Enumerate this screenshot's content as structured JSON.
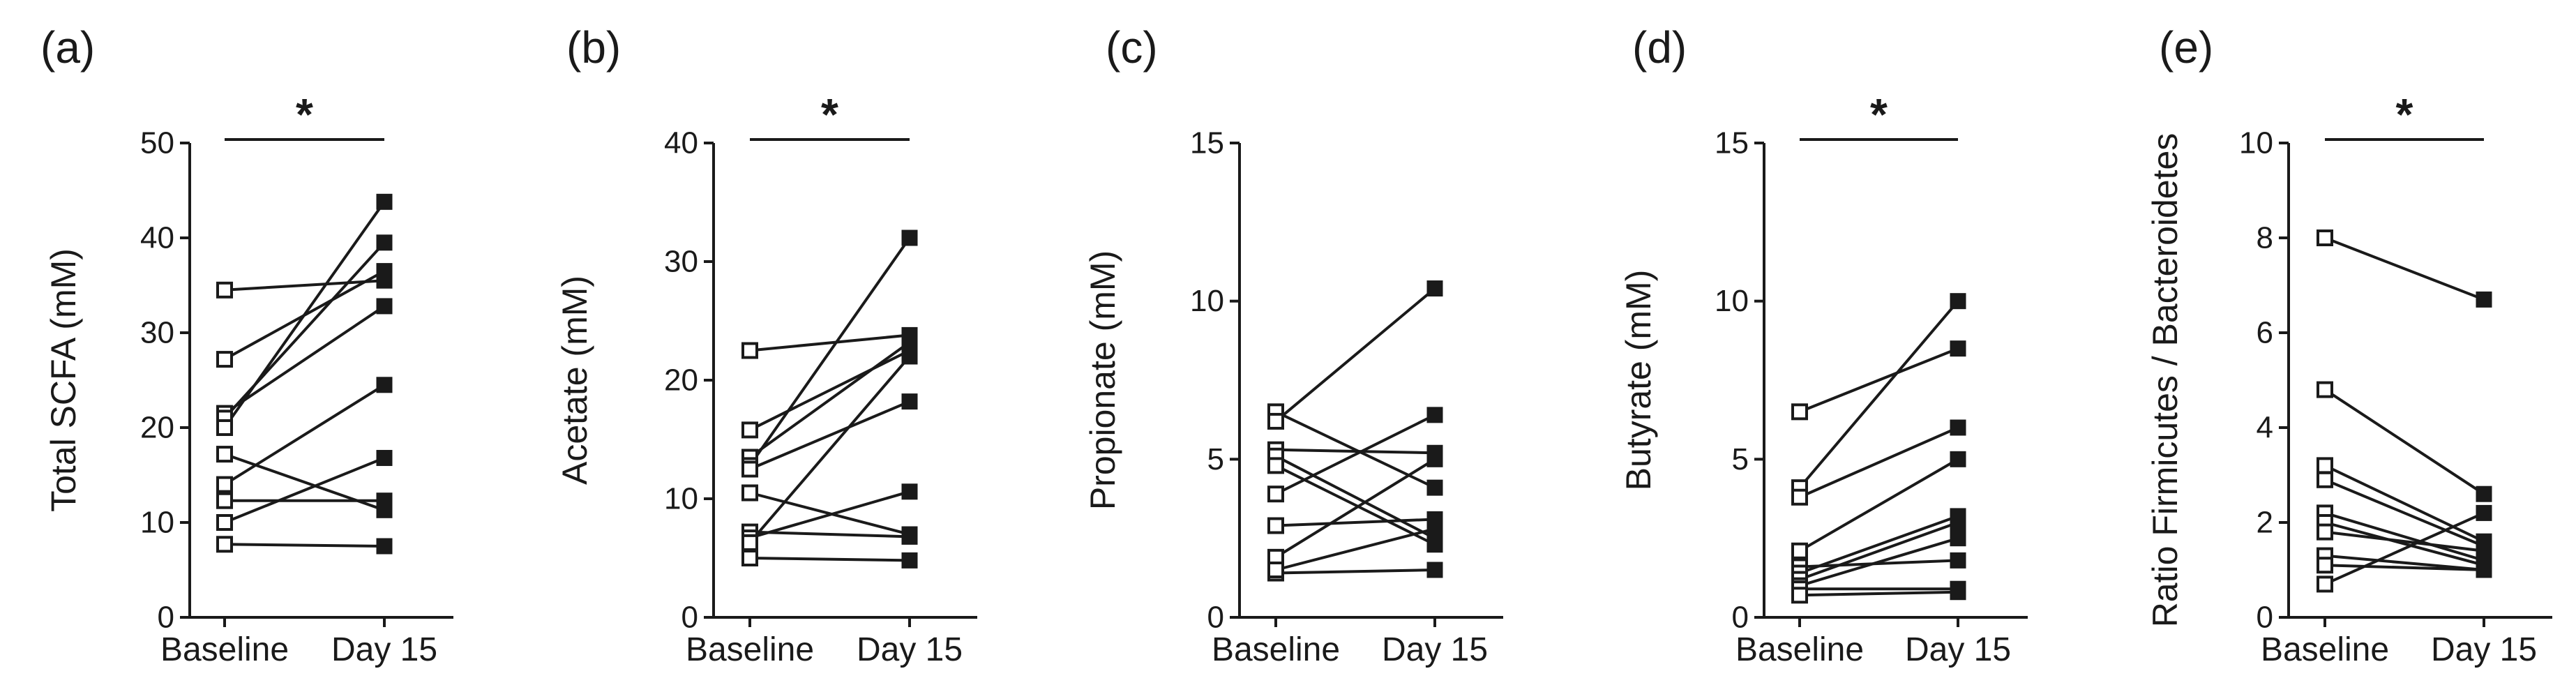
{
  "colors": {
    "ink": "#1a1a1a",
    "background": "#ffffff"
  },
  "chart_data": [
    {
      "type": "line",
      "panel_label": "(a)",
      "ylabel": "Total SCFA (mM)",
      "categories": [
        "Baseline",
        "Day 15"
      ],
      "ylim": [
        0,
        50
      ],
      "yticks": [
        "0",
        "10",
        "20",
        "30",
        "40",
        "50"
      ],
      "ytick_values": [
        0,
        10,
        20,
        30,
        40,
        50
      ],
      "significance": "*",
      "markers": {
        "baseline": "open-square",
        "day15": "filled-square"
      },
      "pairs": [
        [
          34.5,
          35.5
        ],
        [
          27.2,
          36.5
        ],
        [
          21.5,
          32.8
        ],
        [
          21.0,
          39.5
        ],
        [
          20.0,
          43.8
        ],
        [
          17.2,
          11.3
        ],
        [
          14.0,
          24.5
        ],
        [
          12.3,
          12.3
        ],
        [
          10.0,
          16.8
        ],
        [
          7.7,
          7.5
        ]
      ]
    },
    {
      "type": "line",
      "panel_label": "(b)",
      "ylabel": "Acetate (mM)",
      "categories": [
        "Baseline",
        "Day 15"
      ],
      "ylim": [
        0,
        40
      ],
      "yticks": [
        "0",
        "10",
        "20",
        "30",
        "40"
      ],
      "ytick_values": [
        0,
        10,
        20,
        30,
        40
      ],
      "significance": "*",
      "markers": {
        "baseline": "open-square",
        "day15": "filled-square"
      },
      "pairs": [
        [
          22.5,
          23.8
        ],
        [
          15.8,
          22.5
        ],
        [
          13.5,
          23.2
        ],
        [
          12.8,
          32.0
        ],
        [
          12.5,
          18.2
        ],
        [
          10.5,
          7.0
        ],
        [
          7.2,
          6.8
        ],
        [
          6.7,
          10.6
        ],
        [
          6.3,
          22.0
        ],
        [
          5.0,
          4.8
        ]
      ]
    },
    {
      "type": "line",
      "panel_label": "(c)",
      "ylabel": "Propionate (mM)",
      "categories": [
        "Baseline",
        "Day 15"
      ],
      "ylim": [
        0,
        15
      ],
      "yticks": [
        "0",
        "5",
        "10",
        "15"
      ],
      "ytick_values": [
        0,
        5,
        10,
        15
      ],
      "significance": "",
      "markers": {
        "baseline": "open-square",
        "day15": "filled-square"
      },
      "pairs": [
        [
          6.5,
          4.1
        ],
        [
          6.2,
          10.4
        ],
        [
          5.3,
          5.2
        ],
        [
          5.1,
          2.5
        ],
        [
          4.8,
          2.3
        ],
        [
          3.9,
          6.4
        ],
        [
          2.9,
          3.1
        ],
        [
          1.9,
          5.0
        ],
        [
          1.4,
          1.5
        ],
        [
          1.5,
          2.8
        ]
      ]
    },
    {
      "type": "line",
      "panel_label": "(d)",
      "ylabel": "Butyrate (mM)",
      "categories": [
        "Baseline",
        "Day 15"
      ],
      "ylim": [
        0,
        15
      ],
      "yticks": [
        "0",
        "5",
        "10",
        "15"
      ],
      "ytick_values": [
        0,
        5,
        10,
        15
      ],
      "significance": "*",
      "markers": {
        "baseline": "open-square",
        "day15": "filled-square"
      },
      "pairs": [
        [
          6.5,
          8.5
        ],
        [
          4.1,
          10.0
        ],
        [
          3.8,
          6.0
        ],
        [
          2.1,
          5.0
        ],
        [
          1.6,
          1.8
        ],
        [
          1.4,
          3.2
        ],
        [
          1.2,
          3.0
        ],
        [
          1.0,
          2.5
        ],
        [
          0.9,
          0.9
        ],
        [
          0.7,
          0.8
        ]
      ]
    },
    {
      "type": "line",
      "panel_label": "(e)",
      "ylabel": "Ratio Firmicutes / Bacteroidetes",
      "categories": [
        "Baseline",
        "Day 15"
      ],
      "ylim": [
        0,
        10
      ],
      "yticks": [
        "0",
        "2",
        "4",
        "6",
        "8",
        "10"
      ],
      "ytick_values": [
        0,
        2,
        4,
        6,
        8,
        10
      ],
      "significance": "*",
      "markers": {
        "baseline": "open-square",
        "day15": "filled-square"
      },
      "pairs": [
        [
          8.0,
          6.7
        ],
        [
          4.8,
          2.6
        ],
        [
          3.2,
          1.6
        ],
        [
          2.9,
          1.5
        ],
        [
          2.2,
          1.2
        ],
        [
          2.0,
          1.1
        ],
        [
          1.8,
          1.4
        ],
        [
          1.3,
          1.0
        ],
        [
          1.1,
          1.0
        ],
        [
          0.7,
          2.2
        ]
      ]
    }
  ]
}
